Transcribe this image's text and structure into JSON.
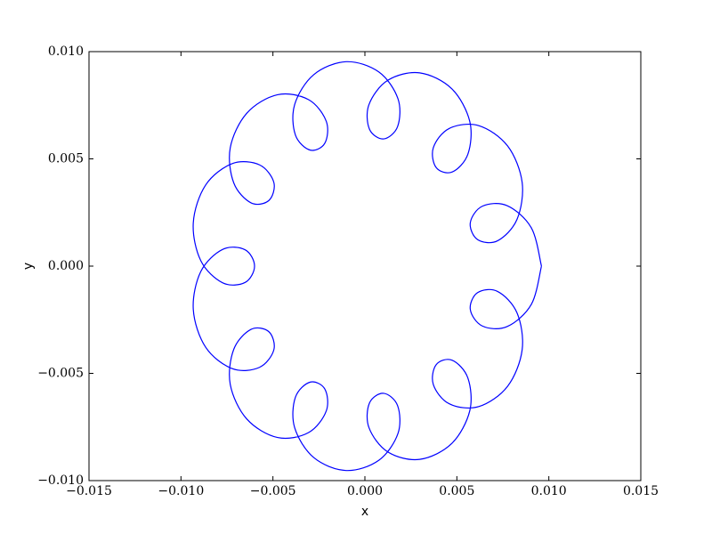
{
  "chart_data": {
    "type": "line",
    "xlabel": "x",
    "ylabel": "y",
    "color": "#0000ff",
    "xlim": [
      -0.015,
      0.015
    ],
    "ylim": [
      -0.01,
      0.01
    ],
    "xticks": [
      {
        "value": -0.015,
        "label": "−0.015"
      },
      {
        "value": -0.01,
        "label": "−0.010"
      },
      {
        "value": -0.005,
        "label": "−0.005"
      },
      {
        "value": 0,
        "label": "0.000"
      },
      {
        "value": 0.005,
        "label": "0.005"
      },
      {
        "value": 0.01,
        "label": "0.010"
      },
      {
        "value": 0.015,
        "label": "0.015"
      }
    ],
    "yticks": [
      {
        "value": -0.01,
        "label": "−0.010"
      },
      {
        "value": -0.005,
        "label": "−0.005"
      },
      {
        "value": 0,
        "label": "0.000"
      },
      {
        "value": 0.005,
        "label": "0.005"
      },
      {
        "value": 0.01,
        "label": "0.010"
      }
    ],
    "x": [
      0.0096,
      0.00905,
      0.00773,
      0.00638,
      0.00573,
      0.00612,
      0.00721,
      0.00827,
      0.00855,
      0.00776,
      0.00619,
      0.00459,
      0.00372,
      0.00388,
      0.00475,
      0.0056,
      0.0057,
      0.00472,
      0.00298,
      0.00124,
      0.00022,
      0.00025,
      0.00102,
      0.00178,
      0.0018,
      0.00076,
      -0.00102,
      -0.00279,
      -0.00382,
      -0.00378,
      -0.00298,
      -0.00218,
      -0.0021,
      -0.00306,
      -0.00475,
      -0.00642,
      -0.00732,
      -0.00713,
      -0.00619,
      -0.00522,
      -0.00495,
      -0.00573,
      -0.00721,
      -0.00866,
      -0.00933,
      -0.00892,
      -0.00773,
      -0.00651,
      -0.006,
      -0.00651,
      -0.00773,
      -0.00892,
      -0.00933,
      -0.00866,
      -0.00721,
      -0.00573,
      -0.00495,
      -0.00522,
      -0.00619,
      -0.00713,
      -0.00732,
      -0.00642,
      -0.00475,
      -0.00306,
      -0.0021,
      -0.00218,
      -0.00298,
      -0.00378,
      -0.00382,
      -0.00279,
      -0.00102,
      0.00076,
      0.0018,
      0.00178,
      0.00102,
      0.00025,
      0.00022,
      0.00124,
      0.00298,
      0.00472,
      0.0057,
      0.0056,
      0.00475,
      0.00388,
      0.00372,
      0.00459,
      0.00619,
      0.00776,
      0.00855,
      0.00827,
      0.00721,
      0.00612,
      0.00573,
      0.00638,
      0.00773,
      0.00905,
      0.0096
    ],
    "values": [
      0,
      0.00178,
      0.00282,
      0.00279,
      0.00202,
      0.00124,
      0.00118,
      0.00218,
      0.0039,
      0.0056,
      0.00655,
      0.00642,
      0.00552,
      0.00459,
      0.00439,
      0.00522,
      0.00675,
      0.00827,
      0.00901,
      0.00866,
      0.00753,
      0.00638,
      0.00593,
      0.00651,
      0.0078,
      0.00905,
      0.00953,
      0.00892,
      0.00753,
      0.00612,
      0.00541,
      0.00573,
      0.00675,
      0.00776,
      0.00799,
      0.00713,
      0.00552,
      0.00388,
      0.00295,
      0.00306,
      0.0039,
      0.00472,
      0.00478,
      0.00378,
      0.00202,
      0.00025,
      -0.00078,
      -0.00076,
      0,
      0.00076,
      0.00078,
      -0.00025,
      -0.00202,
      -0.00378,
      -0.00478,
      -0.00472,
      -0.0039,
      -0.00306,
      -0.00295,
      -0.00388,
      -0.00552,
      -0.00713,
      -0.00799,
      -0.00776,
      -0.00675,
      -0.00573,
      -0.00541,
      -0.00612,
      -0.00753,
      -0.00892,
      -0.00953,
      -0.00905,
      -0.0078,
      -0.00651,
      -0.00593,
      -0.00638,
      -0.00753,
      -0.00866,
      -0.00901,
      -0.00827,
      -0.00675,
      -0.00522,
      -0.00439,
      -0.00459,
      -0.00552,
      -0.00642,
      -0.00655,
      -0.0056,
      -0.0039,
      -0.00218,
      -0.00118,
      -0.00124,
      -0.00202,
      -0.00279,
      -0.00282,
      -0.00178,
      0
    ]
  }
}
